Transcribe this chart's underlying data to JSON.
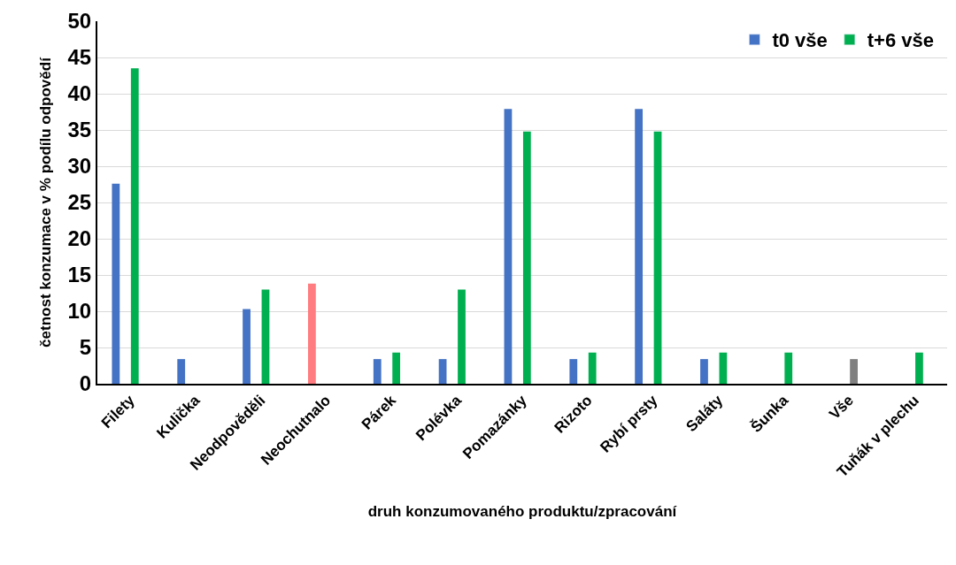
{
  "chart_data": {
    "type": "bar",
    "xlabel": "druh konzumovaného produktu/zpracování",
    "ylabel": "četnost konzumace v % podílu odpovědí",
    "categories": [
      "Filety",
      "Kulička",
      "Neodpověděli",
      "Neochutnalo",
      "Párek",
      "Polévka",
      "Pomazánky",
      "Rizoto",
      "Rybí prsty",
      "Saláty",
      "Šunka",
      "Vše",
      "Tuňák v plechu"
    ],
    "series": [
      {
        "name": "t0 vše",
        "color": "#4472c4",
        "colors": [
          "#4472c4",
          "#4472c4",
          "#4472c4",
          "#ff7c80",
          "#4472c4",
          "#4472c4",
          "#4472c4",
          "#4472c4",
          "#4472c4",
          "#4472c4",
          "#4472c4",
          "#4472c4",
          "#4472c4"
        ],
        "values": [
          27.6,
          3.4,
          10.3,
          13.8,
          3.4,
          3.4,
          37.9,
          3.4,
          37.9,
          3.4,
          null,
          null,
          null
        ]
      },
      {
        "name": "t+6 vše",
        "color": "#00b050",
        "colors": [
          "#00b050",
          "#00b050",
          "#00b050",
          "#00b050",
          "#00b050",
          "#00b050",
          "#00b050",
          "#00b050",
          "#00b050",
          "#00b050",
          "#00b050",
          "#808080",
          "#00b050"
        ],
        "values": [
          43.5,
          null,
          13.0,
          null,
          4.3,
          13.0,
          34.8,
          4.3,
          34.8,
          4.3,
          4.3,
          3.4,
          4.3
        ]
      }
    ],
    "ylim": [
      0,
      50
    ],
    "yticks": [
      0,
      5,
      10,
      15,
      20,
      25,
      30,
      35,
      40,
      45,
      50
    ],
    "grid": "y",
    "legend": "top right"
  }
}
